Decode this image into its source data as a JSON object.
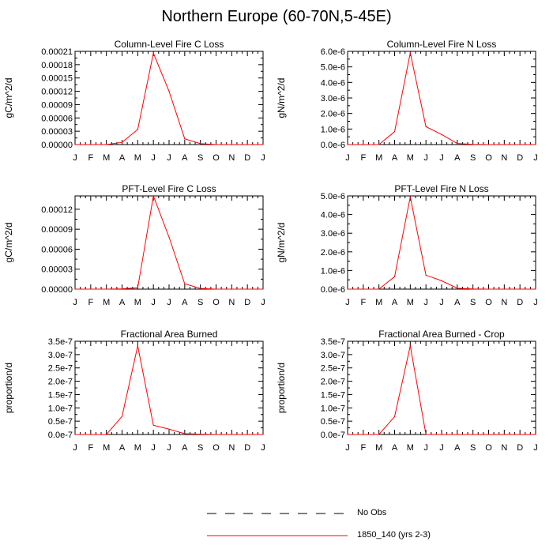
{
  "page_title": "Northern Europe (60-70N,5-45E)",
  "legend": {
    "items": [
      {
        "label": "No Obs",
        "style": "dashed",
        "color": "#000000"
      },
      {
        "label": "1850_140 (yrs 2-3)",
        "style": "solid",
        "color": "#ff0000"
      }
    ]
  },
  "chart_data": [
    {
      "type": "line",
      "title": "Column-Level Fire C Loss",
      "ylabel": "gC/m^2/d",
      "categories": [
        "J",
        "F",
        "M",
        "A",
        "M",
        "J",
        "J",
        "A",
        "S",
        "O",
        "N",
        "D",
        "J"
      ],
      "ylim": [
        0,
        0.00021
      ],
      "yticks": [
        0,
        3e-05,
        6e-05,
        9e-05,
        0.00012,
        0.00015,
        0.00018,
        0.00021
      ],
      "ytick_labels": [
        "0.00000",
        "0.00003",
        "0.00006",
        "0.00009",
        "0.00012",
        "0.00015",
        "0.00018",
        "0.00021"
      ],
      "series": [
        {
          "name": "1850_140 (yrs 2-3)",
          "color": "#ff0000",
          "values": [
            0,
            0,
            0,
            5e-06,
            3.4e-05,
            0.000206,
            0.00012,
            1.3e-05,
            2e-06,
            0,
            0,
            0,
            0
          ]
        }
      ]
    },
    {
      "type": "line",
      "title": "Column-Level Fire N Loss",
      "ylabel": "gN/m^2/d",
      "categories": [
        "J",
        "F",
        "M",
        "A",
        "M",
        "J",
        "J",
        "A",
        "S",
        "O",
        "N",
        "D",
        "J"
      ],
      "ylim": [
        0,
        6e-06
      ],
      "yticks": [
        0,
        1e-06,
        2e-06,
        3e-06,
        4e-06,
        5e-06,
        6e-06
      ],
      "ytick_labels": [
        "0.0e-6",
        "1.0e-6",
        "2.0e-6",
        "3.0e-6",
        "4.0e-6",
        "5.0e-6",
        "6.0e-6"
      ],
      "series": [
        {
          "name": "1850_140 (yrs 2-3)",
          "color": "#ff0000",
          "values": [
            0,
            0,
            0,
            8.3e-07,
            5.9e-06,
            1.15e-06,
            6.5e-07,
            7e-08,
            1e-08,
            0,
            0,
            0,
            0
          ]
        }
      ]
    },
    {
      "type": "line",
      "title": "PFT-Level Fire C Loss",
      "ylabel": "gC/m^2/d",
      "categories": [
        "J",
        "F",
        "M",
        "A",
        "M",
        "J",
        "J",
        "A",
        "S",
        "O",
        "N",
        "D",
        "J"
      ],
      "ylim": [
        0,
        0.00014
      ],
      "yticks": [
        0,
        3e-05,
        6e-05,
        9e-05,
        0.00012
      ],
      "ytick_labels": [
        "0.00000",
        "0.00003",
        "0.00006",
        "0.00009",
        "0.00012"
      ],
      "series": [
        {
          "name": "1850_140 (yrs 2-3)",
          "color": "#ff0000",
          "values": [
            0,
            0,
            0,
            5e-07,
            2e-06,
            0.00014,
            7.8e-05,
            8e-06,
            1e-06,
            0,
            0,
            0,
            0
          ]
        }
      ]
    },
    {
      "type": "line",
      "title": "PFT-Level Fire N Loss",
      "ylabel": "gN/m^2/d",
      "categories": [
        "J",
        "F",
        "M",
        "A",
        "M",
        "J",
        "J",
        "A",
        "S",
        "O",
        "N",
        "D",
        "J"
      ],
      "ylim": [
        0,
        5e-06
      ],
      "yticks": [
        0,
        1e-06,
        2e-06,
        3e-06,
        4e-06,
        5e-06
      ],
      "ytick_labels": [
        "0.0e-6",
        "1.0e-6",
        "2.0e-6",
        "3.0e-6",
        "4.0e-6",
        "5.0e-6"
      ],
      "series": [
        {
          "name": "1850_140 (yrs 2-3)",
          "color": "#ff0000",
          "values": [
            0,
            0,
            0,
            6.7e-07,
            4.95e-06,
            7.5e-07,
            4.5e-07,
            5e-08,
            1e-08,
            0,
            0,
            0,
            0
          ]
        }
      ]
    },
    {
      "type": "line",
      "title": "Fractional Area Burned",
      "ylabel": "proportion/d",
      "categories": [
        "J",
        "F",
        "M",
        "A",
        "M",
        "J",
        "J",
        "A",
        "S",
        "O",
        "N",
        "D",
        "J"
      ],
      "ylim": [
        0,
        3.5e-07
      ],
      "yticks": [
        0,
        5e-08,
        1e-07,
        1.5e-07,
        2e-07,
        2.5e-07,
        3e-07,
        3.5e-07
      ],
      "ytick_labels": [
        "0.0e-7",
        "0.5e-7",
        "1.0e-7",
        "1.5e-7",
        "2.0e-7",
        "2.5e-7",
        "3.0e-7",
        "3.5e-7"
      ],
      "series": [
        {
          "name": "1850_140 (yrs 2-3)",
          "color": "#ff0000",
          "values": [
            0,
            0,
            0,
            6.8e-08,
            3.33e-07,
            3.5e-08,
            2e-08,
            3e-09,
            1e-09,
            0,
            0,
            0,
            0
          ]
        }
      ]
    },
    {
      "type": "line",
      "title": "Fractional Area Burned - Crop",
      "ylabel": "proportion/d",
      "categories": [
        "J",
        "F",
        "M",
        "A",
        "M",
        "J",
        "J",
        "A",
        "S",
        "O",
        "N",
        "D",
        "J"
      ],
      "ylim": [
        0,
        3.5e-07
      ],
      "yticks": [
        0,
        5e-08,
        1e-07,
        1.5e-07,
        2e-07,
        2.5e-07,
        3e-07,
        3.5e-07
      ],
      "ytick_labels": [
        "0.0e-7",
        "0.5e-7",
        "1.0e-7",
        "1.5e-7",
        "2.0e-7",
        "2.5e-7",
        "3.0e-7",
        "3.5e-7"
      ],
      "series": [
        {
          "name": "1850_140 (yrs 2-3)",
          "color": "#ff0000",
          "values": [
            0,
            0,
            0,
            6.7e-08,
            3.33e-07,
            0,
            0,
            0,
            0,
            0,
            0,
            0,
            0
          ]
        }
      ]
    }
  ]
}
